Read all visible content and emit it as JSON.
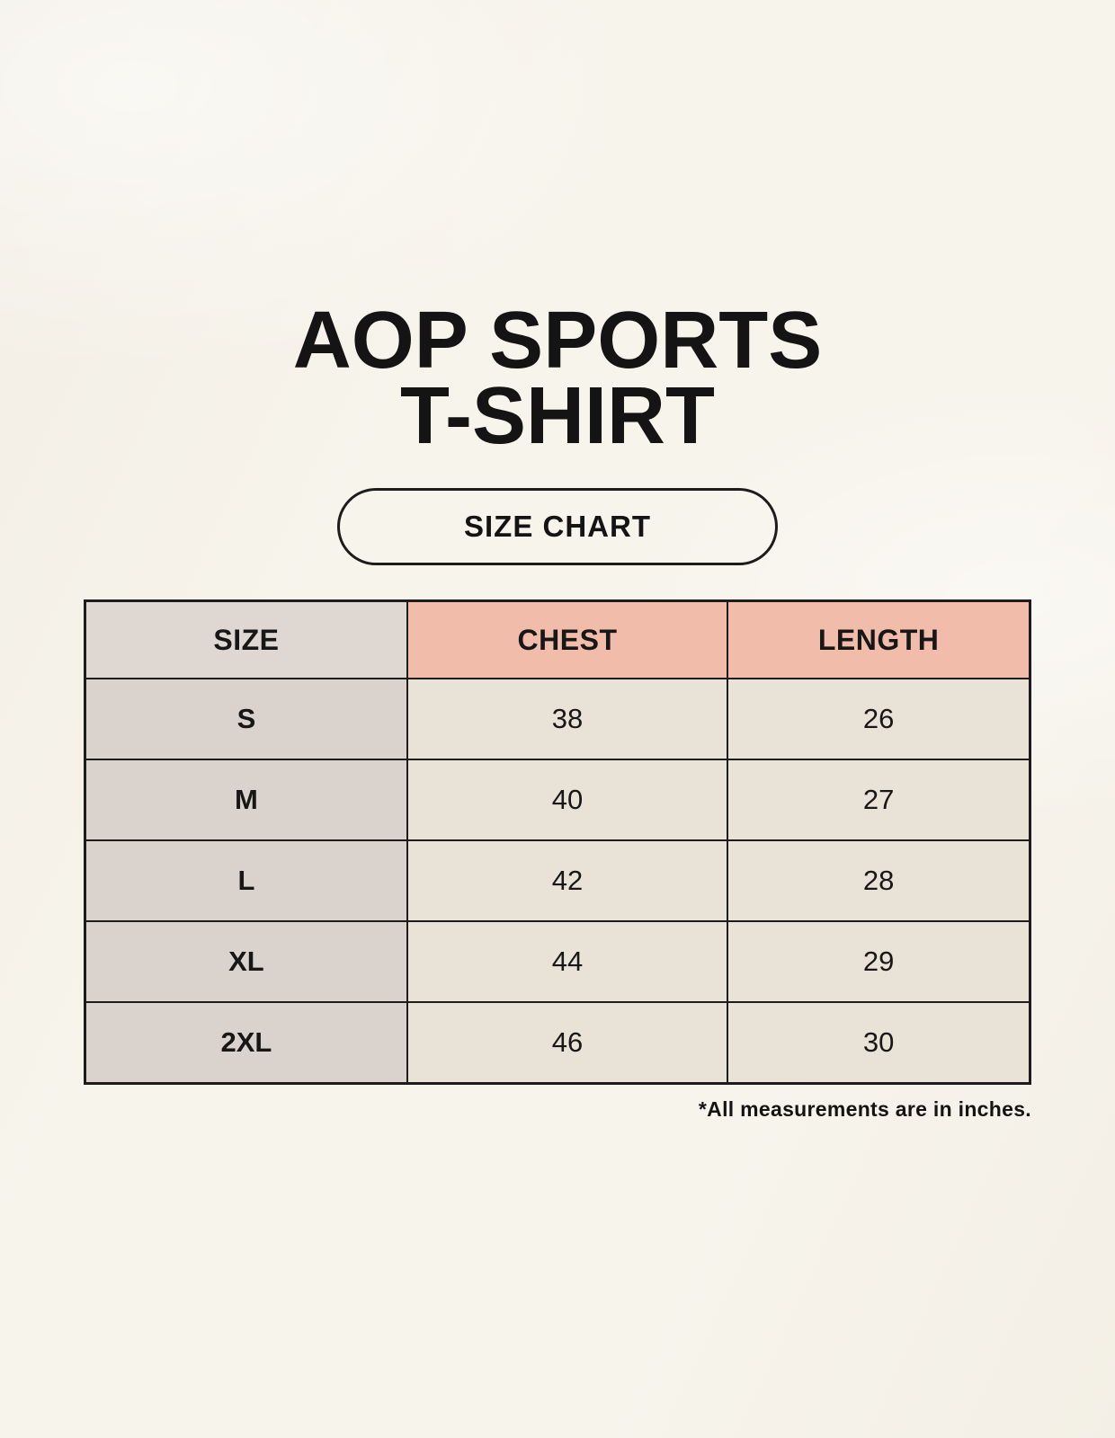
{
  "page": {
    "title_line1": "AOP SPORTS",
    "title_line2": "T-SHIRT",
    "badge_label": "SIZE CHART",
    "footnote": "*All measurements are in inches."
  },
  "colors": {
    "background": "#f7f4ec",
    "size_header_bg": "#ded7d2",
    "measure_header_bg": "#f2bcab",
    "row_label_bg": "#d9d2cd",
    "row_value_bg": "#e9e2d6",
    "border": "#1c1c1c",
    "text": "#171717"
  },
  "chart_data": {
    "type": "table",
    "title": "AOP SPORTS T-SHIRT",
    "subtitle": "SIZE CHART",
    "columns": [
      "SIZE",
      "CHEST",
      "LENGTH"
    ],
    "rows": [
      [
        "S",
        38,
        26
      ],
      [
        "M",
        40,
        27
      ],
      [
        "L",
        42,
        28
      ],
      [
        "XL",
        44,
        29
      ],
      [
        "2XL",
        46,
        30
      ]
    ],
    "units": "inches",
    "note": "*All measurements are in inches."
  }
}
